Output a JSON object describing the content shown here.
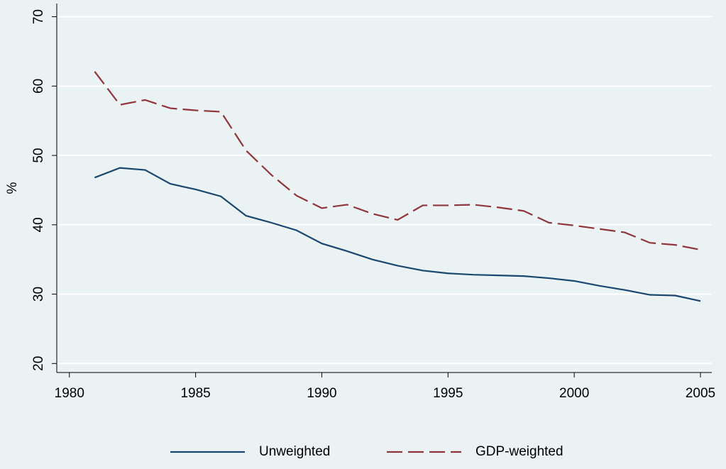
{
  "chart_data": {
    "type": "line",
    "y_label": "%",
    "x": [
      1981,
      1982,
      1983,
      1984,
      1985,
      1986,
      1987,
      1988,
      1989,
      1990,
      1991,
      1992,
      1993,
      1994,
      1995,
      1996,
      1997,
      1998,
      1999,
      2000,
      2001,
      2002,
      2003,
      2004,
      2005
    ],
    "series": [
      {
        "name": "Unweighted",
        "color": "#1a476f",
        "dash": "solid",
        "values": [
          46.8,
          48.2,
          47.9,
          45.9,
          45.1,
          44.1,
          41.3,
          40.3,
          39.2,
          37.3,
          36.2,
          35.0,
          34.1,
          33.4,
          33.0,
          32.8,
          32.7,
          32.6,
          32.3,
          31.9,
          31.2,
          30.6,
          29.9,
          29.8,
          29.0
        ]
      },
      {
        "name": "GDP-weighted",
        "color": "#90353b",
        "dash": "dashed",
        "values": [
          62.1,
          57.3,
          58.0,
          56.8,
          56.5,
          56.3,
          50.7,
          47.2,
          44.2,
          42.4,
          42.9,
          41.6,
          40.7,
          42.8,
          42.8,
          42.9,
          42.5,
          42.0,
          40.3,
          39.9,
          39.4,
          38.9,
          37.4,
          37.1,
          36.4
        ]
      }
    ],
    "xlim": [
      1979.5,
      2005.45
    ],
    "xticks": [
      1980,
      1985,
      1990,
      1995,
      2000,
      2005
    ],
    "ylim": [
      18.7,
      71.9
    ],
    "yticks": [
      20,
      30,
      40,
      50,
      60,
      70
    ],
    "grid": true,
    "legend": "bottom"
  }
}
